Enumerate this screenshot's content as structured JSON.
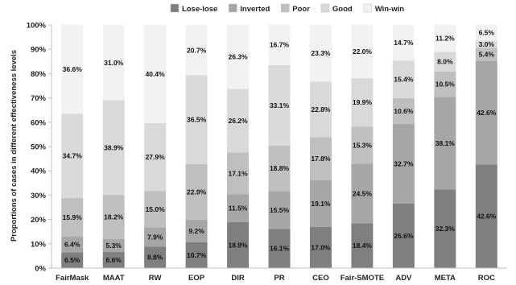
{
  "chart_data": {
    "type": "bar",
    "stacked": true,
    "normalized": true,
    "categories": [
      "FairMask",
      "MAAT",
      "RW",
      "EOP",
      "DIR",
      "PR",
      "CEO",
      "Fair-SMOTE",
      "ADV",
      "META",
      "ROC"
    ],
    "series": [
      {
        "name": "Lose-lose",
        "color": "#7f7f7f",
        "values": [
          6.5,
          6.6,
          8.8,
          10.7,
          18.9,
          16.1,
          17.0,
          18.4,
          26.6,
          32.3,
          42.6
        ]
      },
      {
        "name": "Inverted",
        "color": "#a6a6a6",
        "values": [
          6.4,
          5.3,
          7.9,
          9.2,
          11.5,
          15.5,
          19.1,
          24.5,
          32.7,
          38.1,
          42.6
        ]
      },
      {
        "name": "Poor",
        "color": "#bfbfbf",
        "values": [
          15.9,
          18.2,
          15.0,
          22.9,
          17.1,
          18.8,
          17.8,
          15.3,
          10.6,
          10.5,
          5.4
        ]
      },
      {
        "name": "Good",
        "color": "#d9d9d9",
        "values": [
          34.7,
          38.9,
          27.9,
          36.5,
          26.2,
          33.1,
          22.8,
          19.9,
          15.4,
          8.0,
          3.0
        ]
      },
      {
        "name": "Win-win",
        "color": "#f2f2f2",
        "values": [
          36.6,
          31.0,
          40.4,
          20.7,
          26.3,
          16.7,
          23.3,
          22.0,
          14.7,
          11.2,
          6.5
        ]
      }
    ],
    "value_labels": [
      [
        "6.5%",
        "6.6%",
        "8.8%",
        "10.7%",
        "18.9%",
        "16.1%",
        "17.0%",
        "18.4%",
        "26.6%",
        "32.3%",
        "42.6%"
      ],
      [
        "6.4%",
        "5.3%",
        "7.9%",
        "9.2%",
        "11.5%",
        "15.5%",
        "19.1%",
        "24.5%",
        "32.7%",
        "38.1%",
        "42.6%"
      ],
      [
        "15.9%",
        "18.2%",
        "15.0%",
        "22.9%",
        "17.1%",
        "18.8%",
        "17.8%",
        "15.3%",
        "10.6%",
        "10.5%",
        "5.4%"
      ],
      [
        "34.7%",
        "38.9%",
        "27.9%",
        "36.5%",
        "26.2%",
        "33.1%",
        "22.8%",
        "19.9%",
        "15.4%",
        "8.0%",
        "3.0%"
      ],
      [
        "36.6%",
        "31.0%",
        "40.4%",
        "20.7%",
        "26.3%",
        "16.7%",
        "23.3%",
        "22.0%",
        "14.7%",
        "11.2%",
        "6.5%"
      ]
    ],
    "y_ticks": [
      "0%",
      "10%",
      "20%",
      "30%",
      "40%",
      "50%",
      "60%",
      "70%",
      "80%",
      "90%",
      "100%"
    ],
    "ylim": [
      0,
      100
    ],
    "ylabel": "Proportions of cases in different effectiveness levels",
    "xlabel": "",
    "title": "",
    "legend_position": "top",
    "grid": false
  }
}
